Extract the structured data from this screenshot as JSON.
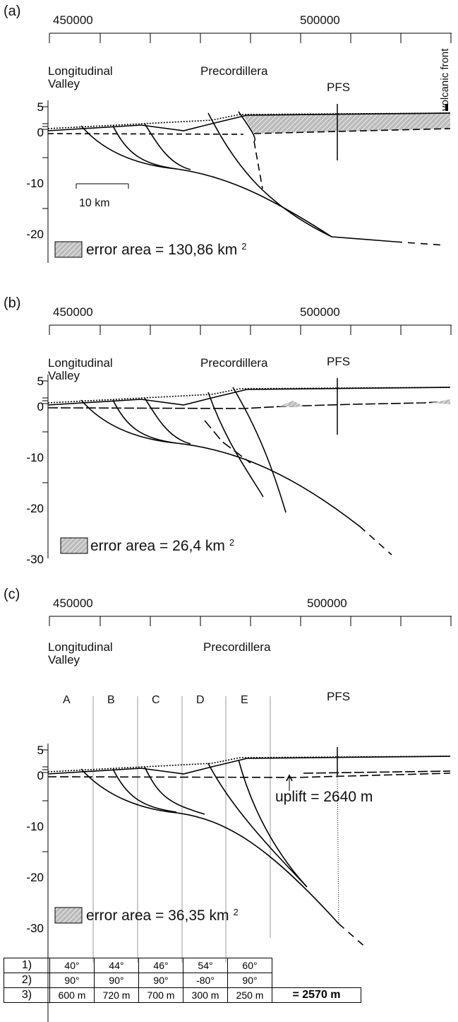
{
  "panels": [
    {
      "label": "(a)",
      "x_ticks": [
        450000,
        500000
      ],
      "y_ticks": [
        5,
        0,
        -10,
        -20
      ],
      "region_west": "Longitudinal Valley",
      "region_east": "Precordillera",
      "fault_system": "PFS",
      "volcanic_front": "volcanic front",
      "scale_bar": "10 km",
      "error_area": "error area = 130,86 km",
      "error_area_power": "2"
    },
    {
      "label": "(b)",
      "x_ticks": [
        450000,
        500000
      ],
      "y_ticks": [
        5,
        0,
        -10,
        -20,
        -30
      ],
      "region_west": "Longitudinal Valley",
      "region_east": "Precordillera",
      "fault_system": "PFS",
      "error_area": "error area = 26,4 km",
      "error_area_power": "2"
    },
    {
      "label": "(c)",
      "x_ticks": [
        450000,
        500000
      ],
      "y_ticks": [
        5,
        0,
        -10,
        -20,
        -30
      ],
      "region_west": "Longitudinal Valley",
      "region_east": "Precordillera",
      "fault_system": "PFS",
      "columns": [
        "A",
        "B",
        "C",
        "D",
        "E"
      ],
      "uplift": "uplift = 2640 m",
      "error_area": "error area = 36,35 km",
      "error_area_power": "2"
    }
  ],
  "table": {
    "rows": [
      [
        "1)",
        "40°",
        "44°",
        "46°",
        "54°",
        "60°"
      ],
      [
        "2)",
        "90°",
        "90°",
        "90°",
        "-80°",
        "90°"
      ],
      [
        "3)",
        "600 m",
        "720 m",
        "700 m",
        "300 m",
        "250 m"
      ]
    ],
    "total": "= 2570 m"
  }
}
